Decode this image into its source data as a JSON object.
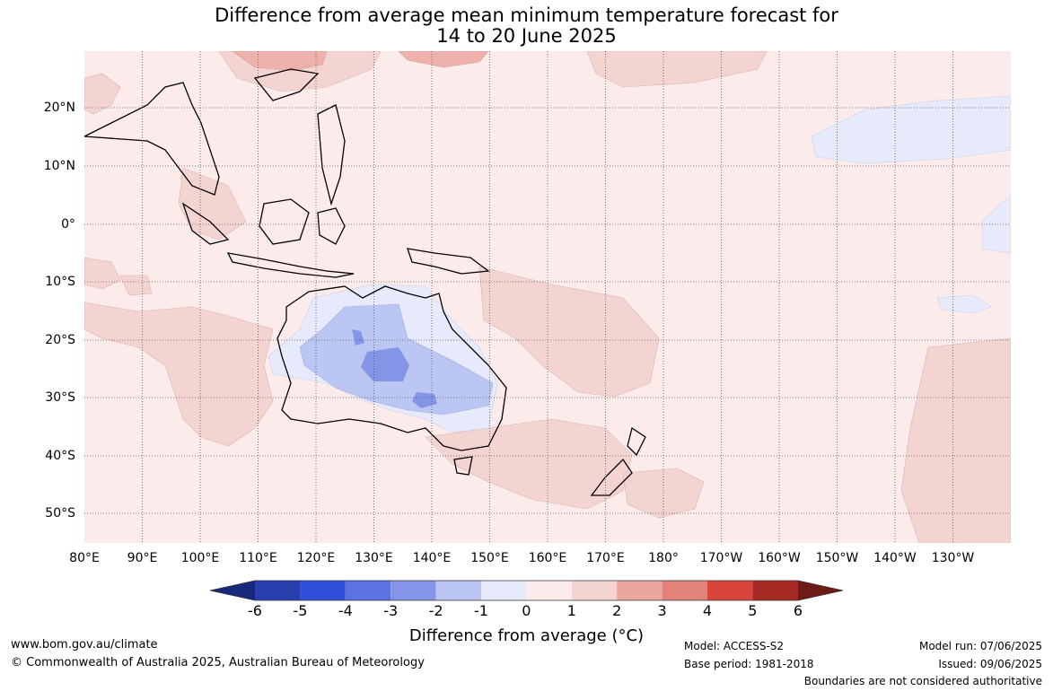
{
  "title": {
    "line1": "Difference from average mean minimum temperature forecast for",
    "line2": "14 to 20 June 2025"
  },
  "axes": {
    "lon_labels": [
      "80°E",
      "90°E",
      "100°E",
      "110°E",
      "120°E",
      "130°E",
      "140°E",
      "150°E",
      "160°E",
      "170°E",
      "180°",
      "170°W",
      "160°W",
      "150°W",
      "140°W",
      "130°W"
    ],
    "lat_labels": [
      "20°N",
      "10°N",
      "0°",
      "10°S",
      "20°S",
      "30°S",
      "40°S",
      "50°S"
    ]
  },
  "colorbar": {
    "title": "Difference from average (°C)",
    "tick_labels": [
      "-6",
      "-5",
      "-4",
      "-3",
      "-2",
      "-1",
      "0",
      "1",
      "2",
      "3",
      "4",
      "5",
      "6"
    ],
    "colors": [
      "#18287a",
      "#2a3fae",
      "#2f4fd8",
      "#5a73e0",
      "#8494e6",
      "#bcc6f2",
      "#e6eafa",
      "#fbeceb",
      "#f4d4d1",
      "#eaa69f",
      "#e2837b",
      "#d8463b",
      "#a72a25",
      "#6e1b17"
    ]
  },
  "footer": {
    "website": "www.bom.gov.au/climate",
    "copyright": "© Commonwealth of Australia 2025, Australian Bureau of Meteorology",
    "model": "Model: ACCESS-S2",
    "base_period": "Base period: 1981-2018",
    "model_run": "Model run: 07/06/2025",
    "issued": "Issued: 09/06/2025",
    "disclaimer": "Boundaries are not considered authoritative"
  }
}
